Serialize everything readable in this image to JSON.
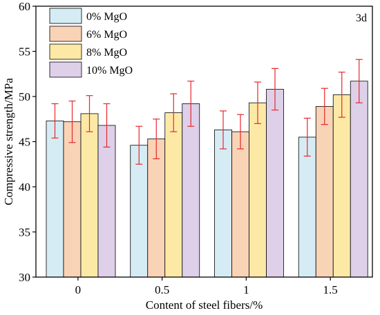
{
  "chart_data": {
    "type": "bar",
    "annotation": "3d",
    "xlabel": "Content of steel fibers/%",
    "ylabel": "Compressive strength/MPa",
    "ylim": [
      30,
      60
    ],
    "yticks": [
      30,
      35,
      40,
      45,
      50,
      55,
      60
    ],
    "categories": [
      "0",
      "0.5",
      "1",
      "1.5"
    ],
    "legend_position": "top-left",
    "grid": false,
    "series": [
      {
        "name": "0% MgO",
        "color": "#d6ecf5",
        "values": [
          47.3,
          44.6,
          46.3,
          45.5
        ],
        "errors": [
          1.9,
          2.1,
          2.1,
          2.1
        ]
      },
      {
        "name": "6% MgO",
        "color": "#f9d3b6",
        "values": [
          47.2,
          45.3,
          46.1,
          48.9
        ],
        "errors": [
          2.3,
          2.2,
          1.9,
          2.0
        ]
      },
      {
        "name": "8% MgO",
        "color": "#fde9a6",
        "values": [
          48.1,
          48.2,
          49.3,
          50.2
        ],
        "errors": [
          2.0,
          2.1,
          2.3,
          2.5
        ]
      },
      {
        "name": "10% MgO",
        "color": "#ddd0e8",
        "values": [
          46.8,
          49.2,
          50.8,
          51.7
        ],
        "errors": [
          2.4,
          2.5,
          2.3,
          2.4
        ]
      }
    ],
    "error_bar_color": "#e8262b"
  }
}
